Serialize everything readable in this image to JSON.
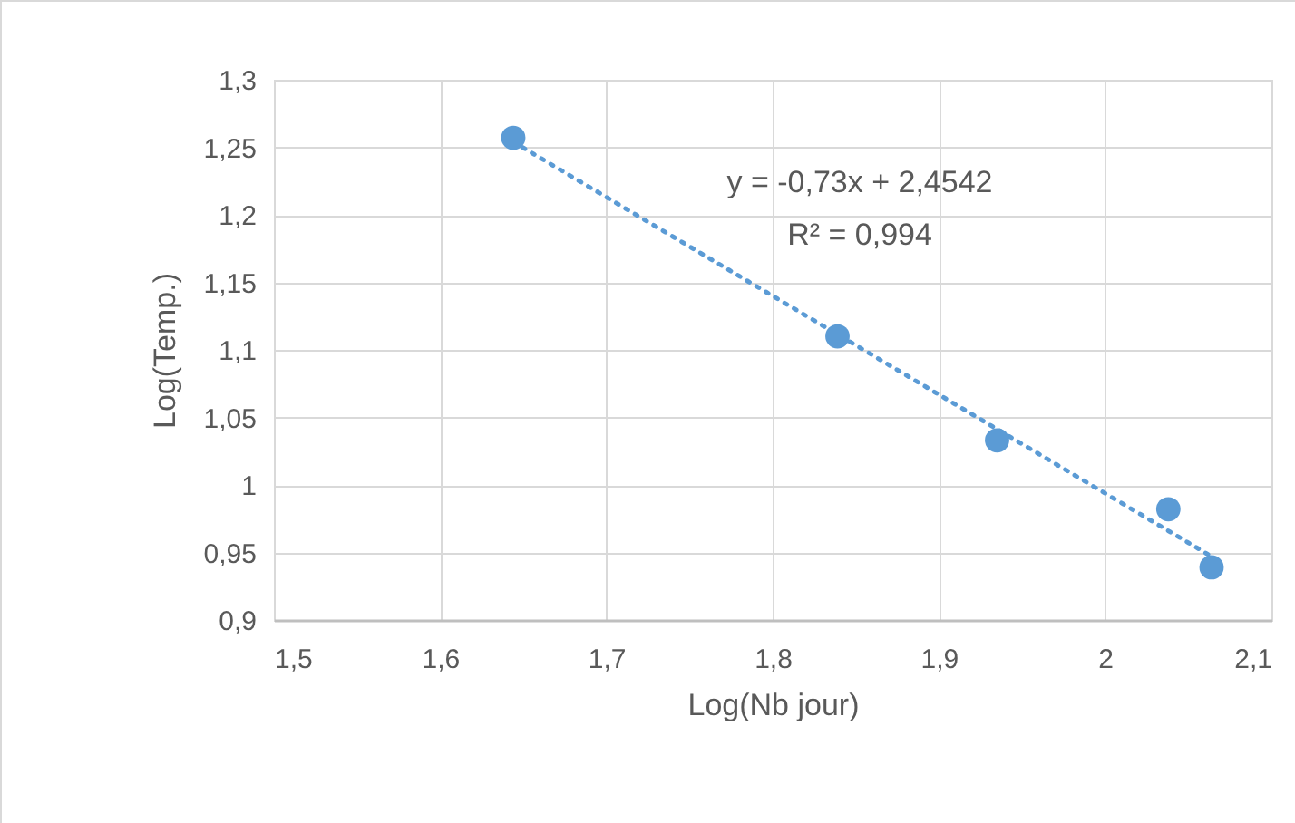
{
  "chart_data": {
    "type": "scatter",
    "xlabel": "Log(Nb jour)",
    "ylabel": "Log(Temp.)",
    "xlim": [
      1.5,
      2.1
    ],
    "xticks": [
      {
        "value": 1.5,
        "label": "1,5"
      },
      {
        "value": 1.6,
        "label": "1,6"
      },
      {
        "value": 1.7,
        "label": "1,7"
      },
      {
        "value": 1.8,
        "label": "1,8"
      },
      {
        "value": 1.9,
        "label": "1,9"
      },
      {
        "value": 2,
        "label": "2"
      },
      {
        "value": 2.1,
        "label": "2,1"
      }
    ],
    "ylim": [
      0.9,
      1.3
    ],
    "yticks": [
      {
        "value": 0.9,
        "label": "0,9"
      },
      {
        "value": 0.95,
        "label": "0,95"
      },
      {
        "value": 1,
        "label": "1"
      },
      {
        "value": 1.05,
        "label": "1,05"
      },
      {
        "value": 1.1,
        "label": "1,1"
      },
      {
        "value": 1.15,
        "label": "1,15"
      },
      {
        "value": 1.2,
        "label": "1,2"
      },
      {
        "value": 1.25,
        "label": "1,25"
      },
      {
        "value": 1.3,
        "label": "1,3"
      }
    ],
    "grid": true,
    "marker": "circle",
    "series": [
      {
        "color": "#5b9bd5",
        "x": [
          1.644,
          1.839,
          1.935,
          2.038,
          2.064
        ],
        "values": [
          1.257,
          1.11,
          1.033,
          0.982,
          0.939
        ]
      },
      {
        "type": "line",
        "color": "#5b9bd5",
        "line_style": "dotted",
        "marker": "none",
        "x": [
          1.644,
          2.064
        ],
        "values": [
          1.254,
          0.947
        ]
      }
    ],
    "annotations": [
      "y = -0,73x + 2,4542",
      "R² = 0,994"
    ]
  }
}
